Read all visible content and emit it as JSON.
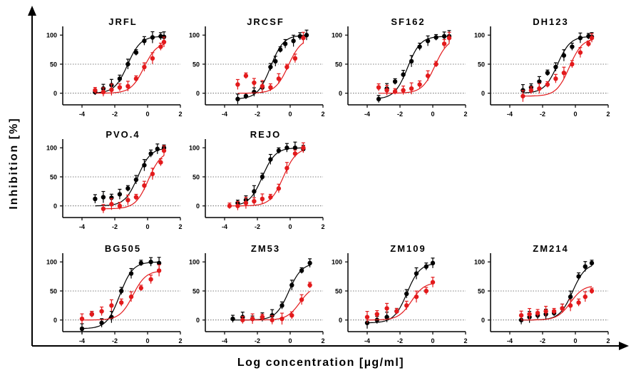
{
  "figure": {
    "ylabel": "Inhibition [%]",
    "xlabel": "Log concentration [µg/ml]"
  },
  "colors": {
    "black_series": "#000000",
    "red_series": "#e31a1c"
  },
  "chart_data": [
    {
      "type": "scatter",
      "title": "JRFL",
      "xlim": [
        -5,
        2
      ],
      "ylim": [
        -20,
        115
      ],
      "x_ticks": [
        -4,
        -2,
        0,
        2
      ],
      "y_ticks": [
        0,
        50,
        100
      ],
      "reference_line": 50,
      "series": [
        {
          "color": "black",
          "x": [
            -3.2,
            -2.7,
            -2.2,
            -1.7,
            -1.2,
            -0.7,
            -0.2,
            0.3,
            0.8,
            1.0
          ],
          "y": [
            2,
            8,
            14,
            25,
            50,
            70,
            90,
            96,
            98,
            97
          ]
        },
        {
          "color": "red",
          "x": [
            -3.2,
            -2.7,
            -2.2,
            -1.7,
            -1.2,
            -0.7,
            -0.2,
            0.3,
            0.8,
            1.0
          ],
          "y": [
            5,
            2,
            6,
            10,
            12,
            25,
            45,
            60,
            80,
            88
          ]
        }
      ]
    },
    {
      "type": "scatter",
      "title": "JRCSF",
      "xlim": [
        -5,
        2
      ],
      "ylim": [
        -20,
        115
      ],
      "x_ticks": [
        -4,
        -2,
        0,
        2
      ],
      "y_ticks": [
        0,
        50,
        100
      ],
      "reference_line": 50,
      "series": [
        {
          "color": "black",
          "x": [
            -3.2,
            -2.7,
            -2.2,
            -1.7,
            -1.2,
            -0.9,
            -0.6,
            -0.3,
            0.2,
            0.6,
            1.0
          ],
          "y": [
            -10,
            -5,
            2,
            10,
            45,
            55,
            75,
            85,
            90,
            98,
            100
          ]
        },
        {
          "color": "red",
          "x": [
            -3.2,
            -2.7,
            -2.2,
            -1.7,
            -1.2,
            -0.7,
            -0.2,
            0.3,
            0.8
          ],
          "y": [
            15,
            30,
            18,
            12,
            10,
            25,
            45,
            60,
            95
          ]
        }
      ]
    },
    {
      "type": "scatter",
      "title": "SF162",
      "xlim": [
        -5,
        2
      ],
      "ylim": [
        -20,
        115
      ],
      "x_ticks": [
        -4,
        -2,
        0,
        2
      ],
      "y_ticks": [
        0,
        50,
        100
      ],
      "reference_line": 50,
      "series": [
        {
          "color": "black",
          "x": [
            -3.3,
            -2.8,
            -2.3,
            -1.8,
            -1.3,
            -0.8,
            -0.3,
            0.2,
            0.7,
            1.0
          ],
          "y": [
            -10,
            8,
            20,
            32,
            55,
            80,
            90,
            96,
            98,
            98
          ]
        },
        {
          "color": "red",
          "x": [
            -3.3,
            -2.8,
            -2.3,
            -1.8,
            -1.3,
            -0.8,
            -0.3,
            0.2,
            0.7,
            1.0
          ],
          "y": [
            10,
            5,
            3,
            5,
            8,
            15,
            30,
            50,
            85,
            95
          ]
        }
      ]
    },
    {
      "type": "scatter",
      "title": "DH123",
      "xlim": [
        -5,
        2
      ],
      "ylim": [
        -20,
        115
      ],
      "x_ticks": [
        -4,
        -2,
        0,
        2
      ],
      "y_ticks": [
        0,
        50,
        100
      ],
      "reference_line": 50,
      "series": [
        {
          "color": "black",
          "x": [
            -3.2,
            -2.7,
            -2.2,
            -1.7,
            -1.2,
            -0.7,
            -0.2,
            0.3,
            0.8,
            1.0
          ],
          "y": [
            5,
            10,
            20,
            35,
            45,
            65,
            80,
            95,
            98,
            97
          ]
        },
        {
          "color": "red",
          "x": [
            -3.2,
            -2.7,
            -2.2,
            -1.7,
            -1.2,
            -0.7,
            -0.2,
            0.3,
            0.8,
            1.0
          ],
          "y": [
            -5,
            5,
            8,
            15,
            25,
            35,
            50,
            70,
            85,
            95
          ]
        }
      ]
    },
    {
      "type": "scatter",
      "title": "PVO.4",
      "xlim": [
        -5,
        2
      ],
      "ylim": [
        -20,
        115
      ],
      "x_ticks": [
        -4,
        -2,
        0,
        2
      ],
      "y_ticks": [
        0,
        50,
        100
      ],
      "reference_line": 50,
      "series": [
        {
          "color": "black",
          "x": [
            -3.2,
            -2.7,
            -2.2,
            -1.7,
            -1.2,
            -0.7,
            -0.2,
            0.2,
            0.6,
            1.0
          ],
          "y": [
            12,
            15,
            14,
            20,
            30,
            45,
            70,
            90,
            98,
            100
          ]
        },
        {
          "color": "red",
          "x": [
            -2.7,
            -2.2,
            -1.7,
            -1.2,
            -0.7,
            -0.2,
            0.3,
            0.8,
            1.0
          ],
          "y": [
            -5,
            3,
            0,
            10,
            15,
            35,
            55,
            75,
            95
          ]
        }
      ]
    },
    {
      "type": "scatter",
      "title": "REJO",
      "xlim": [
        -5,
        2
      ],
      "ylim": [
        -20,
        115
      ],
      "x_ticks": [
        -4,
        -2,
        0,
        2
      ],
      "y_ticks": [
        0,
        50,
        100
      ],
      "reference_line": 50,
      "series": [
        {
          "color": "black",
          "x": [
            -3.2,
            -2.7,
            -2.2,
            -1.7,
            -1.2,
            -0.7,
            -0.2,
            0.3,
            0.8
          ],
          "y": [
            5,
            10,
            25,
            50,
            80,
            95,
            100,
            100,
            98
          ]
        },
        {
          "color": "red",
          "x": [
            -3.7,
            -3.2,
            -2.7,
            -2.2,
            -1.7,
            -1.2,
            -0.7,
            -0.2,
            0.3,
            0.8
          ],
          "y": [
            0,
            0,
            5,
            8,
            12,
            15,
            30,
            65,
            90,
            100
          ]
        }
      ]
    },
    {
      "type": "scatter",
      "title": "BG505",
      "xlim": [
        -5,
        2
      ],
      "ylim": [
        -20,
        115
      ],
      "x_ticks": [
        -4,
        -2,
        0,
        2
      ],
      "y_ticks": [
        0,
        50,
        100
      ],
      "reference_line": 50,
      "series": [
        {
          "color": "black",
          "x": [
            -4.0,
            -3.4,
            -2.8,
            -2.2,
            -1.6,
            -1.0,
            -0.4,
            0.2,
            0.7
          ],
          "y": [
            -15,
            10,
            -5,
            5,
            50,
            80,
            98,
            100,
            98
          ]
        },
        {
          "color": "red",
          "x": [
            -4.0,
            -3.4,
            -2.8,
            -2.2,
            -1.6,
            -1.0,
            -0.4,
            0.2,
            0.7
          ],
          "y": [
            2,
            10,
            15,
            25,
            30,
            40,
            55,
            70,
            85
          ]
        }
      ]
    },
    {
      "type": "scatter",
      "title": "ZM53",
      "xlim": [
        -5,
        2
      ],
      "ylim": [
        -20,
        115
      ],
      "x_ticks": [
        -4,
        -2,
        0,
        2
      ],
      "y_ticks": [
        0,
        50,
        100
      ],
      "reference_line": 50,
      "series": [
        {
          "color": "black",
          "x": [
            -3.5,
            -2.9,
            -2.3,
            -1.7,
            -1.1,
            -0.5,
            0.1,
            0.7,
            1.2
          ],
          "y": [
            2,
            5,
            2,
            5,
            8,
            25,
            60,
            85,
            98
          ]
        },
        {
          "color": "red",
          "x": [
            -2.9,
            -2.3,
            -1.7,
            -1.1,
            -0.5,
            0.1,
            0.7,
            1.2
          ],
          "y": [
            0,
            2,
            5,
            0,
            2,
            8,
            35,
            60
          ]
        }
      ]
    },
    {
      "type": "scatter",
      "title": "ZM109",
      "xlim": [
        -5,
        2
      ],
      "ylim": [
        -20,
        115
      ],
      "x_ticks": [
        -4,
        -2,
        0,
        2
      ],
      "y_ticks": [
        0,
        50,
        100
      ],
      "reference_line": 50,
      "series": [
        {
          "color": "black",
          "x": [
            -4.0,
            -3.4,
            -2.8,
            -2.2,
            -1.6,
            -1.0,
            -0.4,
            0.0
          ],
          "y": [
            -5,
            0,
            5,
            15,
            45,
            80,
            92,
            98
          ]
        },
        {
          "color": "red",
          "x": [
            -4.0,
            -3.4,
            -2.8,
            -2.2,
            -1.6,
            -1.0,
            -0.4,
            0.0
          ],
          "y": [
            5,
            10,
            20,
            15,
            25,
            40,
            50,
            65
          ]
        }
      ]
    },
    {
      "type": "scatter",
      "title": "ZM214",
      "xlim": [
        -5,
        2
      ],
      "ylim": [
        -20,
        115
      ],
      "x_ticks": [
        -4,
        -2,
        0,
        2
      ],
      "y_ticks": [
        0,
        50,
        100
      ],
      "reference_line": 50,
      "series": [
        {
          "color": "black",
          "x": [
            -3.3,
            -2.8,
            -2.3,
            -1.8,
            -1.3,
            -0.8,
            -0.3,
            0.2,
            0.6,
            1.0
          ],
          "y": [
            0,
            5,
            8,
            10,
            12,
            20,
            40,
            75,
            92,
            98
          ]
        },
        {
          "color": "red",
          "x": [
            -3.3,
            -2.8,
            -2.3,
            -1.8,
            -1.3,
            -0.8,
            -0.3,
            0.2,
            0.6,
            1.0
          ],
          "y": [
            8,
            10,
            12,
            15,
            15,
            20,
            25,
            30,
            40,
            50
          ]
        }
      ]
    }
  ]
}
